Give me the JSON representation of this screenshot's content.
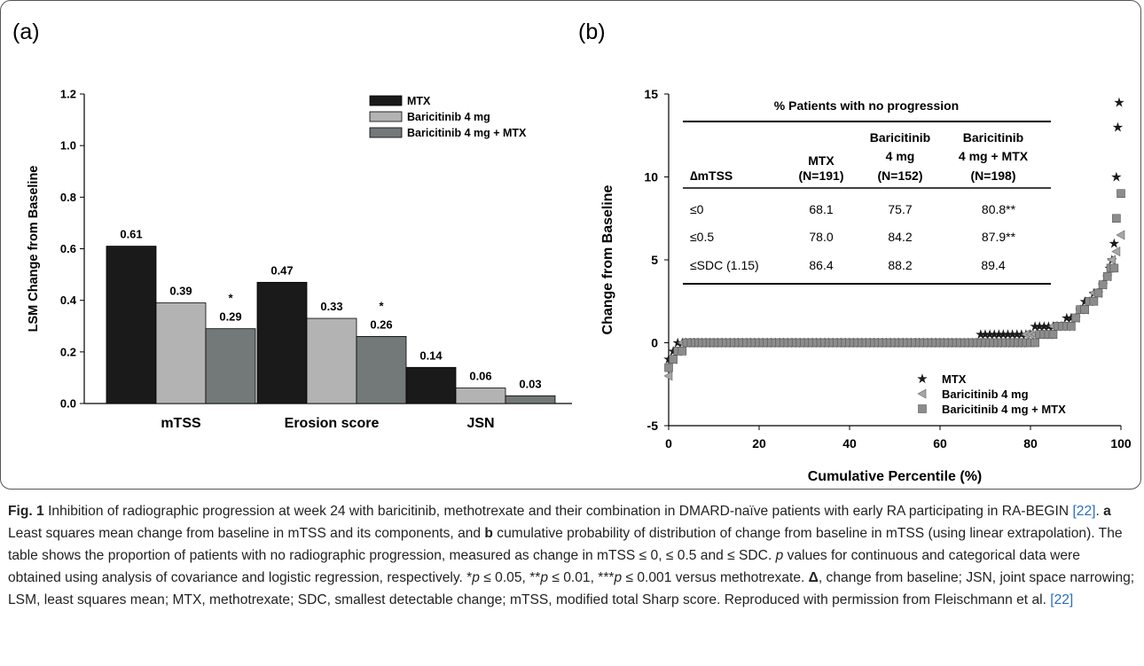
{
  "panel_labels": [
    "(a)",
    "(b)"
  ],
  "chart_data": [
    {
      "type": "bar",
      "panel": "(a)",
      "categories": [
        "mTSS",
        "Erosion score",
        "JSN"
      ],
      "series": [
        {
          "name": "MTX",
          "values": [
            0.61,
            0.47,
            0.14
          ],
          "color": "#1a1a1a",
          "value_labels": [
            "0.61",
            "0.47",
            "0.14"
          ]
        },
        {
          "name": "Baricitinib 4 mg",
          "values": [
            0.39,
            0.33,
            0.06
          ],
          "color": "#b3b3b3",
          "value_labels": [
            "0.39",
            "0.33",
            "0.06"
          ]
        },
        {
          "name": "Baricitinib 4 mg + MTX",
          "values": [
            0.29,
            0.26,
            0.03
          ],
          "color": "#737878",
          "value_labels": [
            "0.29",
            "0.26",
            "0.03"
          ],
          "significance": [
            "*",
            "*",
            ""
          ]
        }
      ],
      "ylabel": "LSM Change from Baseline",
      "ylim": [
        0,
        1.2
      ],
      "yticks": [
        "0.0",
        "0.2",
        "0.4",
        "0.6",
        "0.8",
        "1.0",
        "1.2"
      ],
      "legend": "top-right",
      "grid": false
    },
    {
      "type": "scatter",
      "panel": "(b)",
      "xlabel": "Cumulative Percentile (%)",
      "ylabel": "Change from Baseline",
      "xlim": [
        0,
        100
      ],
      "ylim": [
        -5,
        15
      ],
      "xticks": [
        "0",
        "20",
        "40",
        "60",
        "80",
        "100"
      ],
      "yticks": [
        "-5",
        "0",
        "5",
        "10",
        "15"
      ],
      "legend": "bottom-right",
      "grid": false,
      "series": [
        {
          "name": "MTX",
          "marker": "star",
          "color": "#1a1a1a",
          "points": [
            [
              0,
              -1
            ],
            [
              1,
              -0.5
            ],
            [
              3,
              0
            ],
            [
              10,
              0
            ],
            [
              20,
              0
            ],
            [
              30,
              0
            ],
            [
              40,
              0
            ],
            [
              50,
              0
            ],
            [
              60,
              0
            ],
            [
              68,
              0
            ],
            [
              69,
              0.5
            ],
            [
              72,
              0.5
            ],
            [
              76,
              0.5
            ],
            [
              80,
              0.5
            ],
            [
              81,
              1
            ],
            [
              84,
              1
            ],
            [
              87,
              1
            ],
            [
              88,
              1.5
            ],
            [
              90,
              1.5
            ],
            [
              91,
              2
            ],
            [
              93,
              2.5
            ],
            [
              94,
              3
            ],
            [
              95,
              3
            ],
            [
              96,
              3.5
            ],
            [
              97,
              4
            ],
            [
              97.5,
              4.5
            ],
            [
              98,
              5
            ],
            [
              98.5,
              6
            ],
            [
              99,
              10
            ],
            [
              99.3,
              13
            ],
            [
              99.6,
              14.5
            ]
          ]
        },
        {
          "name": "Baricitinib 4 mg",
          "marker": "triangle-left",
          "color": "#a6a6a6",
          "points": [
            [
              0,
              -2
            ],
            [
              1,
              -1
            ],
            [
              2,
              -0.5
            ],
            [
              3,
              0
            ],
            [
              10,
              0
            ],
            [
              20,
              0
            ],
            [
              30,
              0
            ],
            [
              40,
              0
            ],
            [
              50,
              0
            ],
            [
              60,
              0
            ],
            [
              70,
              0
            ],
            [
              78,
              0
            ],
            [
              79,
              0.5
            ],
            [
              83,
              0.5
            ],
            [
              86,
              1
            ],
            [
              89,
              1
            ],
            [
              90,
              1.5
            ],
            [
              92,
              2
            ],
            [
              93,
              2.5
            ],
            [
              95,
              3
            ],
            [
              96,
              3.5
            ],
            [
              97,
              4
            ],
            [
              98,
              5
            ],
            [
              99,
              5.5
            ],
            [
              100,
              6.5
            ]
          ]
        },
        {
          "name": "Baricitinib 4 mg + MTX",
          "marker": "square",
          "color": "#8c8c8c",
          "points": [
            [
              0,
              -1.5
            ],
            [
              1,
              -1
            ],
            [
              2,
              -0.5
            ],
            [
              3,
              -0.5
            ],
            [
              5,
              0
            ],
            [
              10,
              0
            ],
            [
              20,
              0
            ],
            [
              30,
              0
            ],
            [
              40,
              0
            ],
            [
              50,
              0
            ],
            [
              60,
              0
            ],
            [
              70,
              0
            ],
            [
              80,
              0
            ],
            [
              81,
              0
            ],
            [
              82,
              0.5
            ],
            [
              85,
              0.5
            ],
            [
              87,
              1
            ],
            [
              89,
              1
            ],
            [
              90,
              1.5
            ],
            [
              92,
              2
            ],
            [
              94,
              2.5
            ],
            [
              95,
              3
            ],
            [
              96,
              3.5
            ],
            [
              97,
              4
            ],
            [
              98.5,
              4.5
            ],
            [
              99,
              7.5
            ],
            [
              100,
              9
            ]
          ]
        }
      ]
    }
  ],
  "table": {
    "title": "% Patients with no progression",
    "header_row_label": "∆mTSS",
    "columns": [
      {
        "line1": "MTX",
        "line2": "(N=191)"
      },
      {
        "line1": "Baricitinib",
        "line2": "4 mg",
        "line3": "(N=152)"
      },
      {
        "line1": "Baricitinib",
        "line2": "4 mg + MTX",
        "line3": "(N=198)"
      }
    ],
    "rows": [
      {
        "label": "≤0",
        "cells": [
          "68.1",
          "75.7",
          "80.8**"
        ]
      },
      {
        "label": "≤0.5",
        "cells": [
          "78.0",
          "84.2",
          "87.9**"
        ]
      },
      {
        "label": "≤SDC (1.15)",
        "cells": [
          "86.4",
          "88.2",
          "89.4"
        ]
      }
    ]
  },
  "caption": {
    "fig_label": "Fig. 1",
    "intro": " Inhibition of radiographic progression at week 24 with baricitinib, methotrexate and their combination in DMARD-naïve patients with early RA participating in RA-BEGIN ",
    "ref1": "[22]",
    "part_a_label": "a",
    "part_a_text": " Least squares mean change from baseline in mTSS and its components, and ",
    "part_b_label": "b",
    "part_b_text": " cumulative probability of distribution of change from baseline in mTSS (using linear extrapolation). The table shows the proportion of patients with no radiographic progression, measured as change in mTSS ≤ 0, ≤ 0.5 and ≤ SDC. ",
    "p_italic": "p",
    "p_text": " values for continuous and categorical data were obtained using analysis of covariance and logistic regression, respectively. *",
    "p1": "p",
    "s1": " ≤ 0.05, **",
    "p2": "p",
    "s2": " ≤ 0.01, ***",
    "p3": "p",
    "s3": " ≤ 0.001 versus methotrexate. ",
    "delta": "Δ",
    "tail": ", change from baseline; JSN, joint space narrowing; LSM, least squares mean; MTX, methotrexate; SDC, smallest detectable change; mTSS, modified total Sharp score. Reproduced with permission from Fleischmann et al. ",
    "ref2": "[22]"
  }
}
